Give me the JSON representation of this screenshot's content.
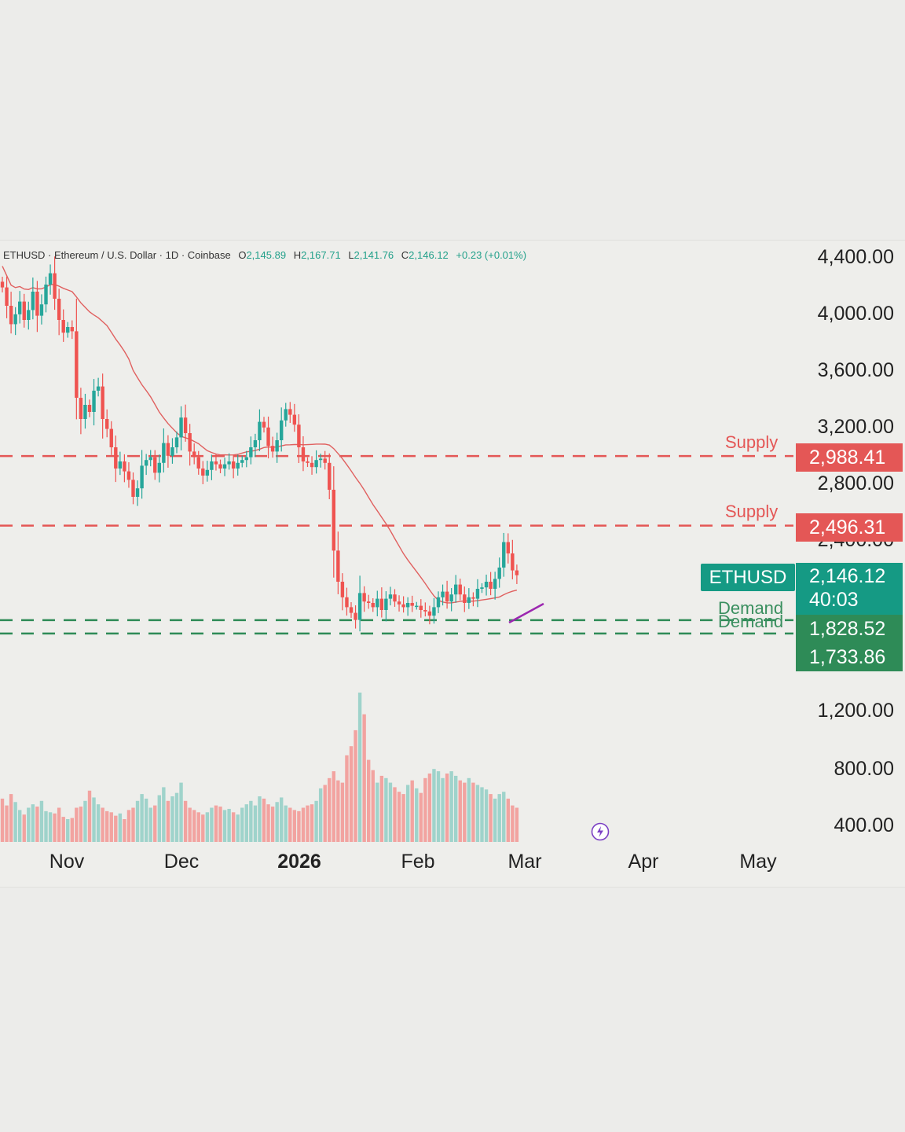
{
  "header": {
    "symbol_desc": "ETHUSD · Ethereum / U.S. Dollar · 1D · Coinbase",
    "o_label": "O",
    "o_value": "2,145.89",
    "h_label": "H",
    "h_value": "2,167.71",
    "l_label": "L",
    "l_value": "2,141.76",
    "c_label": "C",
    "c_value": "2,146.12",
    "change": "+0.23 (+0.01%)"
  },
  "price_axis": [
    "4,400.00",
    "4,000.00",
    "3,600.00",
    "3,200.00",
    "2,800.00",
    "2,400.00",
    "1,200.00",
    "800.00",
    "400.00"
  ],
  "time_axis": [
    "Nov",
    "Dec",
    "2026",
    "Feb",
    "Mar",
    "Apr",
    "May"
  ],
  "zones": {
    "supply_upper": {
      "label": "Supply",
      "price": "2,988.41"
    },
    "supply_lower": {
      "label": "Supply",
      "price": "2,496.31"
    },
    "demand_upper": {
      "label": "Demand",
      "price": "1,828.52"
    },
    "demand_lower": {
      "label": "Demand",
      "price": "1,733.86"
    }
  },
  "current": {
    "symbol": "ETHUSD",
    "price": "2,146.12",
    "countdown": "40:03"
  },
  "colors": {
    "up": "#26a69a",
    "down": "#ef5350",
    "supply": "#e45756",
    "demand": "#2e8b57",
    "ma": "#e0605f",
    "trendline": "#9c27b0",
    "badge_green": "#159a84"
  },
  "chart_data": {
    "type": "candlestick",
    "symbol": "ETHUSD",
    "interval": "1D",
    "ohlc_last": {
      "open": 2145.89,
      "high": 2167.71,
      "low": 2141.76,
      "close": 2146.12
    },
    "price_ylim": [
      1200,
      4400
    ],
    "levels": [
      {
        "name": "Supply",
        "price": 2988.41
      },
      {
        "name": "Supply",
        "price": 2496.31
      },
      {
        "name": "Demand",
        "price": 1828.52
      },
      {
        "name": "Demand",
        "price": 1733.86
      }
    ],
    "x_ticks": [
      "Nov",
      "Dec",
      "2026",
      "Feb",
      "Mar",
      "Apr",
      "May"
    ],
    "closes": [
      4180,
      4050,
      3920,
      3990,
      4080,
      3950,
      4020,
      4150,
      3980,
      4060,
      4200,
      4280,
      4100,
      3950,
      3860,
      3900,
      3870,
      3400,
      3250,
      3350,
      3300,
      3450,
      3480,
      3250,
      3180,
      3050,
      2900,
      2950,
      2880,
      2820,
      2700,
      2760,
      2920,
      2960,
      2980,
      2870,
      2940,
      3080,
      2990,
      3050,
      3120,
      3260,
      3150,
      3020,
      2980,
      2900,
      2850,
      2890,
      2950,
      2930,
      2900,
      2930,
      2950,
      2900,
      2940,
      2960,
      2980,
      3050,
      3100,
      3230,
      3190,
      3060,
      3020,
      3100,
      3240,
      3320,
      3280,
      3210,
      3050,
      2950,
      2940,
      2910,
      2960,
      2970,
      2940,
      2750,
      2320,
      2100,
      1990,
      1920,
      1880,
      1830,
      2020,
      1960,
      1950,
      1920,
      1980,
      1900,
      1980,
      2010,
      1960,
      1940,
      1920,
      1950,
      1930,
      1930,
      1900,
      1890,
      1860,
      1920,
      1990,
      2030,
      1960,
      2010,
      2080,
      2010,
      1950,
      1990,
      1980,
      2050,
      2060,
      2100,
      2050,
      2120,
      2200,
      2380,
      2300,
      2180,
      2146
    ],
    "volumes": [
      380,
      320,
      420,
      350,
      280,
      240,
      300,
      330,
      310,
      360,
      270,
      260,
      250,
      300,
      220,
      200,
      210,
      300,
      310,
      360,
      450,
      390,
      330,
      300,
      270,
      260,
      230,
      250,
      200,
      280,
      300,
      360,
      420,
      380,
      300,
      320,
      410,
      480,
      360,
      400,
      430,
      520,
      360,
      300,
      280,
      260,
      240,
      260,
      300,
      320,
      310,
      280,
      290,
      260,
      240,
      300,
      330,
      360,
      320,
      400,
      380,
      330,
      310,
      350,
      390,
      320,
      300,
      280,
      270,
      300,
      320,
      330,
      360,
      470,
      500,
      560,
      620,
      540,
      520,
      760,
      840,
      980,
      1310,
      1120,
      720,
      630,
      520,
      580,
      560,
      520,
      480,
      440,
      420,
      500,
      540,
      470,
      430,
      560,
      600,
      640,
      620,
      560,
      600,
      620,
      580,
      540,
      520,
      560,
      520,
      500,
      480,
      460,
      420,
      380,
      420,
      440,
      380,
      320,
      300
    ],
    "ma_period": 50
  }
}
